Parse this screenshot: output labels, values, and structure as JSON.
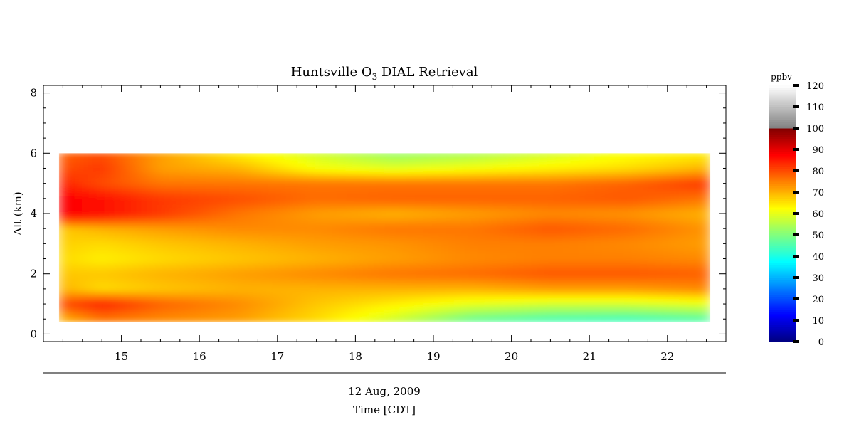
{
  "chart_data": {
    "type": "heatmap",
    "title": "Huntsville O",
    "title_subscript": "3",
    "title_suffix": " DIAL Retrieval",
    "ylabel": "Alt (km)",
    "xlabel_line1": "12 Aug, 2009",
    "xlabel_line2": "Time [CDT]",
    "xlim": [
      14.0,
      22.75
    ],
    "ylim": [
      -0.25,
      8.25
    ],
    "xticks": [
      15,
      16,
      17,
      18,
      19,
      20,
      21,
      22
    ],
    "yticks": [
      0,
      2,
      4,
      6,
      8
    ],
    "data_extent": {
      "x": [
        14.2,
        22.55
      ],
      "y": [
        0.4,
        6.0
      ]
    },
    "colorbar": {
      "unit": "ppbv",
      "range": [
        0,
        120
      ],
      "ticks": [
        0,
        10,
        20,
        30,
        40,
        50,
        60,
        70,
        80,
        90,
        100,
        110,
        120
      ],
      "colormap": "jet below 100 ppbv, grayscale 100-120 ppbv"
    },
    "ozone_ppbv": {
      "x": [
        14.25,
        14.75,
        15.5,
        16.5,
        17.5,
        18.5,
        19.5,
        20.5,
        21.5,
        22.5
      ],
      "y": [
        0.5,
        1.0,
        1.5,
        2.0,
        2.5,
        3.0,
        3.5,
        4.0,
        4.5,
        5.0,
        5.5,
        6.0
      ],
      "values": [
        [
          70,
          76,
          74,
          72,
          66,
          58,
          48,
          45,
          44,
          46
        ],
        [
          80,
          84,
          78,
          74,
          68,
          64,
          60,
          58,
          58,
          60
        ],
        [
          70,
          66,
          68,
          70,
          70,
          70,
          70,
          72,
          72,
          74
        ],
        [
          68,
          68,
          70,
          72,
          74,
          76,
          77,
          79,
          79,
          78
        ],
        [
          66,
          64,
          66,
          68,
          70,
          72,
          74,
          75,
          75,
          74
        ],
        [
          67,
          66,
          68,
          70,
          72,
          73,
          75,
          75,
          74,
          72
        ],
        [
          68,
          70,
          72,
          74,
          74,
          76,
          76,
          79,
          77,
          73
        ],
        [
          88,
          86,
          82,
          76,
          72,
          70,
          72,
          74,
          73,
          70
        ],
        [
          88,
          86,
          82,
          80,
          77,
          78,
          78,
          78,
          79,
          76
        ],
        [
          84,
          80,
          76,
          76,
          76,
          76,
          76,
          76,
          78,
          82
        ],
        [
          80,
          82,
          72,
          70,
          62,
          60,
          62,
          64,
          66,
          70
        ],
        [
          78,
          80,
          72,
          64,
          58,
          52,
          54,
          58,
          62,
          64
        ]
      ]
    }
  }
}
